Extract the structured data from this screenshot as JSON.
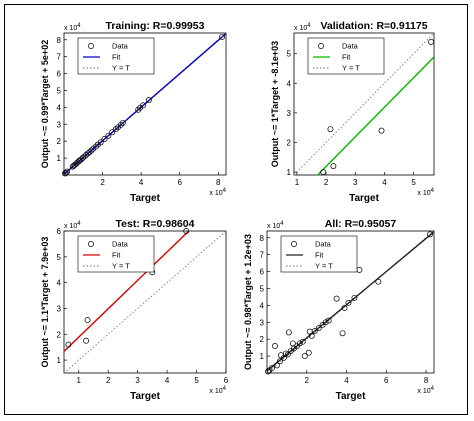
{
  "chart_data": [
    {
      "type": "scatter",
      "title": "Training: R=0.99953",
      "xlabel": "Target",
      "ylabel": "Output ~= 0.99*Target + 5e+02",
      "xlim": [
        0,
        84000
      ],
      "ylim": [
        0,
        84000
      ],
      "xticks": [
        2,
        4,
        6,
        8
      ],
      "yticks": [
        1,
        2,
        3,
        4,
        5,
        6,
        7,
        8
      ],
      "multiplier": "x 10",
      "multiplier_exp": "4",
      "fit_color": "#0000cc",
      "fit": {
        "slope": 0.99,
        "intercept": 500
      },
      "legend": [
        "Data",
        "Fit",
        "Y = T"
      ],
      "legend_position": "top-left",
      "points": [
        {
          "x": 500,
          "y": 900
        },
        {
          "x": 900,
          "y": 1300
        },
        {
          "x": 1600,
          "y": 2000
        },
        {
          "x": 4500,
          "y": 4900
        },
        {
          "x": 5000,
          "y": 5500
        },
        {
          "x": 5600,
          "y": 6000
        },
        {
          "x": 6500,
          "y": 6800
        },
        {
          "x": 7000,
          "y": 7500
        },
        {
          "x": 7800,
          "y": 8200
        },
        {
          "x": 8200,
          "y": 8700
        },
        {
          "x": 9000,
          "y": 9300
        },
        {
          "x": 9800,
          "y": 10200
        },
        {
          "x": 10600,
          "y": 11000
        },
        {
          "x": 11500,
          "y": 11900
        },
        {
          "x": 12400,
          "y": 12800
        },
        {
          "x": 13200,
          "y": 13500
        },
        {
          "x": 14200,
          "y": 14500
        },
        {
          "x": 15200,
          "y": 15600
        },
        {
          "x": 16500,
          "y": 16800
        },
        {
          "x": 17500,
          "y": 18000
        },
        {
          "x": 19000,
          "y": 19300
        },
        {
          "x": 21000,
          "y": 21300
        },
        {
          "x": 23000,
          "y": 23200
        },
        {
          "x": 25000,
          "y": 25300
        },
        {
          "x": 27000,
          "y": 27200
        },
        {
          "x": 28000,
          "y": 28300
        },
        {
          "x": 29500,
          "y": 29700
        },
        {
          "x": 30500,
          "y": 30800
        },
        {
          "x": 38500,
          "y": 38600
        },
        {
          "x": 39500,
          "y": 39800
        },
        {
          "x": 41000,
          "y": 41200
        },
        {
          "x": 44000,
          "y": 44300
        },
        {
          "x": 82000,
          "y": 81700
        }
      ]
    },
    {
      "type": "scatter",
      "title": "Validation: R=0.91175",
      "xlabel": "Target",
      "ylabel": "Output ~= 1*Target + -8.1e+03",
      "xlim": [
        9000,
        57000
      ],
      "ylim": [
        9000,
        57000
      ],
      "xticks": [
        1,
        2,
        3,
        4,
        5
      ],
      "yticks": [
        1,
        2,
        3,
        4,
        5
      ],
      "multiplier": "x 10",
      "multiplier_exp": "4",
      "fit_color": "#00bb00",
      "fit": {
        "slope": 1.0,
        "intercept": -8100
      },
      "legend": [
        "Data",
        "Fit",
        "Y = T"
      ],
      "legend_position": "top-left",
      "points": [
        {
          "x": 19000,
          "y": 10000
        },
        {
          "x": 21500,
          "y": 24500
        },
        {
          "x": 22500,
          "y": 12000
        },
        {
          "x": 39000,
          "y": 24000
        },
        {
          "x": 56000,
          "y": 54000
        }
      ]
    },
    {
      "type": "scatter",
      "title": "Test: R=0.98604",
      "xlabel": "Target",
      "ylabel": "Output ~= 1.1*Target + 7.9e+03",
      "xlim": [
        5000,
        60000
      ],
      "ylim": [
        5000,
        60000
      ],
      "xticks": [
        1,
        2,
        3,
        4,
        5,
        6
      ],
      "yticks": [
        1,
        2,
        3,
        4,
        5,
        6
      ],
      "multiplier": "x 10",
      "multiplier_exp": "4",
      "fit_color": "#dd0000",
      "fit": {
        "slope": 1.1,
        "intercept": 7900
      },
      "legend": [
        "Data",
        "Fit",
        "Y = T"
      ],
      "legend_position": "top-left",
      "points": [
        {
          "x": 6500,
          "y": 16000
        },
        {
          "x": 12500,
          "y": 17500
        },
        {
          "x": 13000,
          "y": 25500
        },
        {
          "x": 35000,
          "y": 44000
        },
        {
          "x": 46500,
          "y": 60000
        }
      ]
    },
    {
      "type": "scatter",
      "title": "All: R=0.95057",
      "xlabel": "Target",
      "ylabel": "Output ~= 0.98*Target + 1.2e+03",
      "xlim": [
        0,
        84000
      ],
      "ylim": [
        0,
        84000
      ],
      "xticks": [
        2,
        4,
        6,
        8
      ],
      "yticks": [
        1,
        2,
        3,
        4,
        5,
        6,
        7,
        8
      ],
      "multiplier": "x 10",
      "multiplier_exp": "4",
      "fit_color": "#222222",
      "fit": {
        "slope": 0.98,
        "intercept": 1200
      },
      "legend": [
        "Data",
        "Fit",
        "Y = T"
      ],
      "legend_position": "top-left",
      "points": [
        {
          "x": 500,
          "y": 900
        },
        {
          "x": 1200,
          "y": 1600
        },
        {
          "x": 2500,
          "y": 3000
        },
        {
          "x": 4000,
          "y": 16000
        },
        {
          "x": 5000,
          "y": 4500
        },
        {
          "x": 6500,
          "y": 7000
        },
        {
          "x": 7000,
          "y": 10500
        },
        {
          "x": 8500,
          "y": 9000
        },
        {
          "x": 9500,
          "y": 11500
        },
        {
          "x": 10500,
          "y": 11000
        },
        {
          "x": 11000,
          "y": 24000
        },
        {
          "x": 12000,
          "y": 13000
        },
        {
          "x": 13000,
          "y": 17500
        },
        {
          "x": 13500,
          "y": 14500
        },
        {
          "x": 15000,
          "y": 15800
        },
        {
          "x": 16500,
          "y": 17500
        },
        {
          "x": 18000,
          "y": 18500
        },
        {
          "x": 19000,
          "y": 10000
        },
        {
          "x": 21000,
          "y": 12000
        },
        {
          "x": 21500,
          "y": 24500
        },
        {
          "x": 22500,
          "y": 22000
        },
        {
          "x": 24000,
          "y": 24800
        },
        {
          "x": 26000,
          "y": 26500
        },
        {
          "x": 28000,
          "y": 28500
        },
        {
          "x": 29500,
          "y": 30000
        },
        {
          "x": 31000,
          "y": 31000
        },
        {
          "x": 35000,
          "y": 44000
        },
        {
          "x": 38000,
          "y": 23500
        },
        {
          "x": 39000,
          "y": 38500
        },
        {
          "x": 41000,
          "y": 41500
        },
        {
          "x": 44000,
          "y": 44500
        },
        {
          "x": 46500,
          "y": 61000
        },
        {
          "x": 56000,
          "y": 54000
        },
        {
          "x": 82000,
          "y": 82000
        }
      ]
    }
  ]
}
